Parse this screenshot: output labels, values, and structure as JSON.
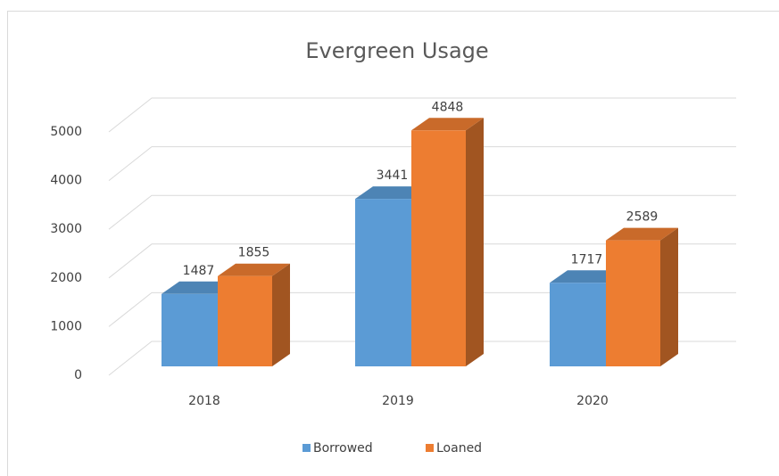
{
  "chart_data": {
    "type": "bar3d",
    "title": "Evergreen Usage",
    "categories": [
      "2018",
      "2019",
      "2020"
    ],
    "series": [
      {
        "name": "Borrowed",
        "color": "#5b9bd5",
        "values": [
          1487,
          3441,
          1717
        ]
      },
      {
        "name": "Loaned",
        "color": "#ed7d31",
        "values": [
          1855,
          4848,
          2589
        ]
      }
    ],
    "ylim": [
      0,
      5000
    ],
    "yticks": [
      0,
      1000,
      2000,
      3000,
      4000,
      5000
    ],
    "grid": true,
    "legend": "bottom"
  }
}
